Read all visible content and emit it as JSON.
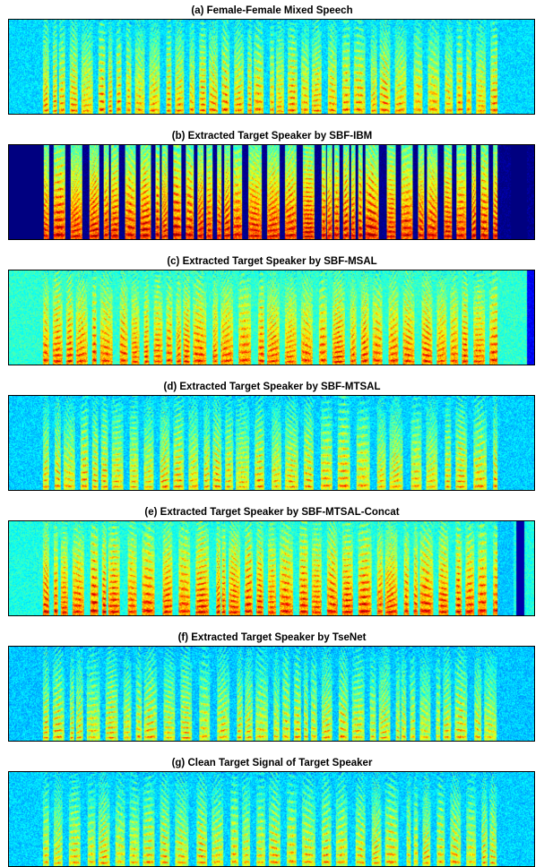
{
  "figure": {
    "panels": [
      {
        "id": "a",
        "title": "(a) Female-Female Mixed Speech"
      },
      {
        "id": "b",
        "title": "(b) Extracted Target Speaker by SBF-IBM"
      },
      {
        "id": "c",
        "title": "(c) Extracted Target Speaker by SBF-MSAL"
      },
      {
        "id": "d",
        "title": "(d) Extracted Target Speaker by SBF-MTSAL"
      },
      {
        "id": "e",
        "title": "(e) Extracted Target Speaker by SBF-MTSAL-Concat"
      },
      {
        "id": "f",
        "title": "(f) Extracted Target Speaker by TseNet"
      },
      {
        "id": "g",
        "title": "(g) Clean Target Signal of Target Speaker"
      }
    ]
  },
  "chart_data": [
    {
      "type": "heatmap",
      "title": "(a) Female-Female Mixed Speech",
      "colormap": "jet",
      "xlabel": "",
      "ylabel": "",
      "grid": false
    },
    {
      "type": "heatmap",
      "title": "(b) Extracted Target Speaker by SBF-IBM",
      "colormap": "jet",
      "xlabel": "",
      "ylabel": "",
      "grid": false
    },
    {
      "type": "heatmap",
      "title": "(c) Extracted Target Speaker by SBF-MSAL",
      "colormap": "jet",
      "xlabel": "",
      "ylabel": "",
      "grid": false
    },
    {
      "type": "heatmap",
      "title": "(d) Extracted Target Speaker by SBF-MTSAL",
      "colormap": "jet",
      "xlabel": "",
      "ylabel": "",
      "grid": false
    },
    {
      "type": "heatmap",
      "title": "(e) Extracted Target Speaker by SBF-MTSAL-Concat",
      "colormap": "jet",
      "xlabel": "",
      "ylabel": "",
      "grid": false
    },
    {
      "type": "heatmap",
      "title": "(f) Extracted Target Speaker by TseNet",
      "colormap": "jet",
      "xlabel": "",
      "ylabel": "",
      "grid": false
    },
    {
      "type": "heatmap",
      "title": "(g) Clean Target Signal of Target Speaker",
      "colormap": "jet",
      "xlabel": "",
      "ylabel": "",
      "grid": false
    }
  ]
}
